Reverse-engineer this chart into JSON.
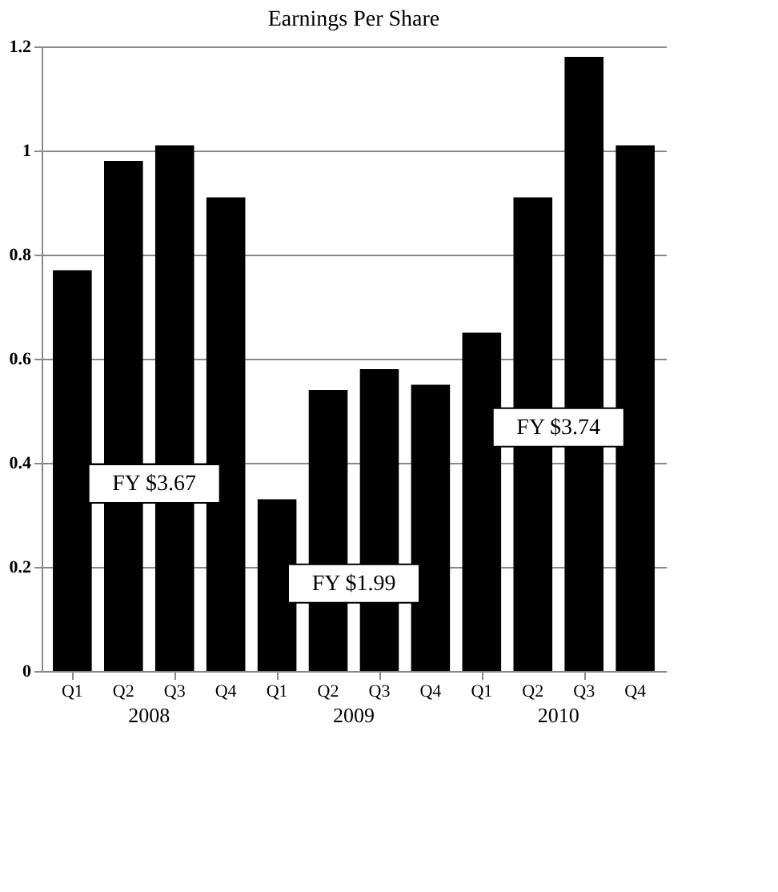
{
  "chart_data": {
    "type": "bar",
    "title": "Earnings Per Share",
    "categories": [
      "Q1",
      "Q2",
      "Q3",
      "Q4",
      "Q1",
      "Q2",
      "Q3",
      "Q4",
      "Q1",
      "Q2",
      "Q3",
      "Q4"
    ],
    "values": [
      0.77,
      0.98,
      1.01,
      0.91,
      0.33,
      0.54,
      0.58,
      0.55,
      0.65,
      0.91,
      1.18,
      1.01
    ],
    "color": "#000000",
    "ylim": [
      0,
      1.2
    ],
    "yticks": [
      0,
      0.2,
      0.4,
      0.6,
      0.8,
      1,
      1.2
    ],
    "grid": "y",
    "annotations": [
      "2008",
      "2009",
      "2010",
      "FY $3.67",
      "FY $1.99",
      "FY $3.74"
    ]
  }
}
